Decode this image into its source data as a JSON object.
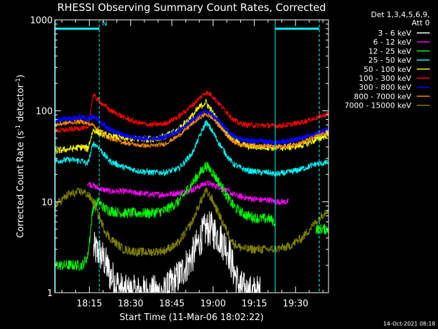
{
  "chart_data": {
    "type": "line",
    "title": "RHESSI Observing Summary Count Rates, Corrected",
    "xlabel": "Start Time (11-Mar-06 18:02:22)",
    "ylabel_main": "Corrected Count Rate (s",
    "ylabel_sup1": "-1",
    "ylabel_mid": " detector",
    "ylabel_sup2": "-1",
    "ylabel_end": ")",
    "y_scale": "log",
    "ylim": [
      1,
      1000
    ],
    "y_ticks": [
      {
        "value": 1,
        "label": "1"
      },
      {
        "value": 10,
        "label": "10"
      },
      {
        "value": 100,
        "label": "100"
      },
      {
        "value": 1000,
        "label": "1000"
      }
    ],
    "x_range_minutes": [
      0,
      99.6
    ],
    "x_ticks": [
      {
        "minute": 12.6,
        "label": "18:15"
      },
      {
        "minute": 27.6,
        "label": "18:30"
      },
      {
        "minute": 42.6,
        "label": "18:45"
      },
      {
        "minute": 57.6,
        "label": "19:00"
      },
      {
        "minute": 72.6,
        "label": "19:15"
      },
      {
        "minute": 87.6,
        "label": "19:30"
      }
    ],
    "minor_tick_step_minutes": 5,
    "legend_header": [
      "Det 1,3,4,5,6,9,",
      "Att 0"
    ],
    "legend_placement": "right, outside plot",
    "series": [
      {
        "name": "3 - 6 keV",
        "color": "#ffffff",
        "x": [
          0,
          5,
          10,
          12,
          14,
          16,
          18,
          20,
          25,
          30,
          35,
          40,
          45,
          50,
          53,
          55,
          57,
          60,
          63,
          65,
          67,
          70,
          75,
          78,
          80,
          85,
          90,
          95,
          99.6
        ],
        "y": [
          null,
          null,
          null,
          null,
          3,
          2.8,
          2.3,
          1.6,
          1,
          1,
          1,
          1,
          1.5,
          2.5,
          4,
          5,
          5,
          4,
          3,
          1.8,
          1.2,
          1,
          1,
          null,
          null,
          null,
          null,
          null,
          null
        ]
      },
      {
        "name": "6 - 12 keV",
        "color": "#ff00ff",
        "x": [
          12,
          14,
          16,
          18,
          20,
          25,
          30,
          35,
          40,
          45,
          50,
          53,
          55,
          57,
          60,
          63,
          65,
          67,
          70,
          75,
          78,
          80,
          85
        ],
        "y": [
          16,
          15,
          14,
          13.5,
          13,
          13,
          12.5,
          12,
          12,
          12.5,
          13.5,
          15,
          16,
          15.5,
          14.5,
          13,
          12,
          11.5,
          11,
          10.5,
          10.5,
          10,
          10
        ]
      },
      {
        "name": "12 - 25 keV",
        "color": "#00ff00",
        "x": [
          0,
          5,
          10,
          12,
          14,
          16,
          18,
          20,
          25,
          30,
          35,
          40,
          45,
          50,
          53,
          55,
          57,
          60,
          63,
          65,
          67,
          70,
          75,
          78,
          80,
          85,
          90,
          95,
          99.6
        ],
        "y": [
          2,
          2,
          2,
          2.5,
          9,
          10,
          8.5,
          8,
          7.5,
          7.5,
          7.5,
          8,
          10,
          16,
          21,
          25,
          22,
          16,
          11,
          9,
          8,
          7,
          6.5,
          6.5,
          6,
          null,
          null,
          5,
          5
        ]
      },
      {
        "name": "25 - 50 keV",
        "color": "#00ffff",
        "x": [
          0,
          5,
          10,
          12,
          14,
          16,
          18,
          20,
          25,
          30,
          35,
          40,
          45,
          50,
          53,
          55,
          57,
          60,
          63,
          65,
          67,
          70,
          75,
          78,
          80,
          85,
          90,
          95,
          99.6
        ],
        "y": [
          28,
          29,
          28,
          26,
          44,
          40,
          33,
          28,
          24,
          22,
          21,
          21,
          23,
          34,
          55,
          75,
          62,
          43,
          31,
          26,
          24,
          22,
          21,
          21,
          20,
          21,
          23,
          26,
          27
        ]
      },
      {
        "name": "50 - 100 keV",
        "color": "#ffff00",
        "x": [
          0,
          5,
          10,
          12,
          14,
          16,
          18,
          20,
          25,
          30,
          35,
          40,
          45,
          50,
          53,
          55,
          57,
          60,
          63,
          65,
          67,
          70,
          75,
          78,
          80,
          85,
          90,
          95,
          99.6
        ],
        "y": [
          36,
          38,
          40,
          38,
          62,
          58,
          55,
          52,
          50,
          49,
          49,
          52,
          62,
          88,
          112,
          125,
          100,
          72,
          55,
          48,
          44,
          41,
          40,
          40,
          39,
          40,
          42,
          48,
          55
        ]
      },
      {
        "name": "100 - 300 keV",
        "color": "#ff0000",
        "x": [
          0,
          5,
          10,
          12,
          14,
          16,
          18,
          20,
          25,
          30,
          35,
          40,
          45,
          50,
          53,
          55,
          57,
          60,
          63,
          65,
          67,
          70,
          75,
          78,
          80,
          85,
          90,
          95,
          99.6
        ],
        "y": [
          60,
          62,
          65,
          62,
          150,
          130,
          115,
          102,
          85,
          74,
          70,
          72,
          86,
          115,
          140,
          160,
          150,
          118,
          94,
          80,
          73,
          70,
          69,
          69,
          68,
          70,
          75,
          83,
          93
        ]
      },
      {
        "name": "300 - 800 keV",
        "color": "#0000ff",
        "x": [
          0,
          5,
          10,
          12,
          14,
          16,
          18,
          20,
          25,
          30,
          35,
          40,
          45,
          50,
          53,
          55,
          57,
          60,
          63,
          65,
          67,
          70,
          75,
          78,
          80,
          85,
          90,
          95,
          99.6
        ],
        "y": [
          78,
          82,
          85,
          80,
          88,
          78,
          70,
          62,
          54,
          50,
          49,
          51,
          60,
          78,
          92,
          98,
          92,
          75,
          60,
          53,
          49,
          47,
          46,
          46,
          45,
          46,
          50,
          56,
          63
        ]
      },
      {
        "name": "800 - 7000 keV",
        "color": "#ff8c00",
        "x": [
          0,
          5,
          10,
          12,
          14,
          16,
          18,
          20,
          25,
          30,
          35,
          40,
          45,
          50,
          53,
          55,
          57,
          60,
          63,
          65,
          67,
          70,
          75,
          78,
          80,
          85,
          90,
          95,
          99.6
        ],
        "y": [
          70,
          74,
          76,
          72,
          70,
          62,
          55,
          50,
          45,
          42,
          41,
          43,
          53,
          72,
          85,
          92,
          85,
          68,
          52,
          46,
          43,
          42,
          41,
          41,
          40,
          41,
          45,
          52,
          58
        ]
      },
      {
        "name": "7000 - 15000 keV",
        "color": "#808000",
        "x": [
          0,
          5,
          10,
          12,
          14,
          16,
          18,
          20,
          25,
          30,
          35,
          40,
          45,
          50,
          53,
          55,
          57,
          60,
          63,
          65,
          67,
          70,
          75,
          78,
          80,
          85,
          90,
          95,
          99.6
        ],
        "y": [
          9,
          12,
          13,
          12,
          10,
          7,
          5,
          4,
          3,
          2.8,
          2.8,
          2.9,
          3.5,
          6,
          10,
          13,
          11,
          7,
          4.5,
          3.5,
          3.2,
          3,
          3,
          3,
          3,
          3.2,
          4,
          6,
          8.5
        ]
      }
    ],
    "vertical_markers": [
      {
        "minute": 0.2,
        "style": "solid",
        "color": "#00ffff"
      },
      {
        "minute": 16.2,
        "style": "dashed",
        "color": "#00ffff"
      },
      {
        "minute": 80.2,
        "style": "solid",
        "color": "#00ffff"
      },
      {
        "minute": 96.2,
        "style": "dashed",
        "color": "#00ffff"
      }
    ],
    "top_bars": [
      {
        "from_minute": 0.2,
        "to_minute": 16.2,
        "value": 800,
        "color": "#00ffff"
      },
      {
        "from_minute": 80.2,
        "to_minute": 96.2,
        "value": 800,
        "color": "#00ffff"
      }
    ],
    "annotations": [
      {
        "text": "N",
        "minute": 17.2,
        "value": 860,
        "color": "#00ffff"
      }
    ],
    "grid": false
  },
  "footer_timestamp": "14-Oct-2021 08:18"
}
